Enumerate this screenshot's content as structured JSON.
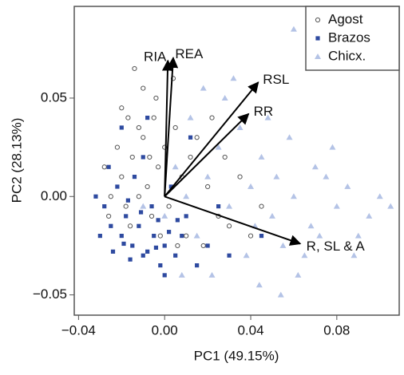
{
  "chart_data": {
    "type": "scatter",
    "x_label": "PC1 (49.15%)",
    "y_label": "PC2 (28.13%)",
    "xlim": [
      -0.042,
      0.109
    ],
    "ylim": [
      -0.0603,
      0.0966
    ],
    "xticks": [
      {
        "value": -0.04,
        "label": "−0.04"
      },
      {
        "value": 0,
        "label": "0.00"
      },
      0.04,
      0.08
    ],
    "yticks": [
      {
        "value": -0.05,
        "label": "−0.05"
      },
      {
        "value": 0,
        "label": "0.00"
      },
      0.05
    ],
    "legend": "top-right",
    "series": [
      {
        "name": "Agost",
        "color": "#555555",
        "marker": "open-circle",
        "x": [
          -0.02,
          -0.015,
          -0.01,
          -0.005,
          -0.018,
          -0.012,
          -0.008,
          -0.003,
          0,
          0.005,
          -0.022,
          -0.025,
          -0.016,
          -0.006,
          0.002,
          0.008,
          0.012,
          0.015,
          0.02,
          0.025,
          -0.028,
          -0.01,
          -0.014,
          -0.004,
          0.01,
          0.018,
          0.03,
          -0.002,
          -0.02,
          0.004,
          0.04,
          0.045,
          -0.012,
          -0.026,
          0.022,
          0.028,
          0.006,
          -0.007,
          -0.017,
          0.035
        ],
        "y": [
          0.01,
          0.02,
          0.03,
          0.04,
          -0.005,
          0,
          0.005,
          0.015,
          0.025,
          0.035,
          0.025,
          0,
          -0.015,
          -0.01,
          -0.005,
          0.01,
          0.02,
          0.03,
          0.005,
          -0.01,
          0.015,
          0.055,
          0.065,
          0.05,
          -0.02,
          -0.025,
          -0.015,
          -0.02,
          0.045,
          0.06,
          -0.02,
          -0.005,
          0.035,
          -0.01,
          0.04,
          0.02,
          -0.025,
          0.02,
          0.04,
          0.01
        ]
      },
      {
        "name": "Brazos",
        "color": "#2e4aa0",
        "marker": "square",
        "x": [
          -0.02,
          -0.015,
          -0.01,
          -0.005,
          0,
          -0.018,
          -0.012,
          -0.008,
          -0.003,
          0.002,
          -0.025,
          -0.028,
          -0.022,
          -0.014,
          -0.006,
          0.005,
          0.008,
          -0.03,
          -0.024,
          -0.016,
          -0.01,
          -0.02,
          0.01,
          0.015,
          -0.002,
          -0.026,
          0.02,
          0.03,
          -0.008,
          0.003,
          -0.017,
          0.012,
          0.025,
          -0.032,
          0,
          -0.011,
          0.045,
          0.006,
          -0.004,
          -0.019
        ],
        "y": [
          -0.02,
          -0.025,
          -0.03,
          -0.02,
          -0.025,
          -0.01,
          -0.015,
          -0.028,
          -0.012,
          -0.018,
          -0.015,
          -0.005,
          0.005,
          0.01,
          -0.005,
          -0.03,
          -0.02,
          -0.02,
          -0.028,
          -0.032,
          0.02,
          0.035,
          -0.01,
          -0.035,
          -0.035,
          0.015,
          -0.025,
          -0.03,
          0.04,
          0.005,
          -0.002,
          0.03,
          -0.005,
          0,
          -0.04,
          -0.008,
          -0.02,
          -0.012,
          -0.026,
          -0.024
        ]
      },
      {
        "name": "Chicx.",
        "color": "#b4c3e6",
        "marker": "triangle",
        "x": [
          0.01,
          0.02,
          0.03,
          0.04,
          0.05,
          0.06,
          0.07,
          0.08,
          0.09,
          0.1,
          0.015,
          0.025,
          0.035,
          0.045,
          0.055,
          0.065,
          0.075,
          0.085,
          0.095,
          0.105,
          0.005,
          0.012,
          0.028,
          0.038,
          0.048,
          0.058,
          0.068,
          0.078,
          0.088,
          0.044,
          0.022,
          0.032,
          -0.01,
          0,
          0.008,
          0.062,
          0.072,
          0.052,
          0.042,
          0.018,
          0.06,
          0.054
        ],
        "y": [
          0,
          0.01,
          -0.005,
          0.005,
          -0.01,
          0,
          0.015,
          -0.005,
          -0.02,
          0,
          -0.02,
          0.025,
          0.035,
          0.02,
          -0.025,
          -0.03,
          0.01,
          0.005,
          -0.01,
          -0.005,
          0.015,
          0.04,
          0.05,
          -0.03,
          0.04,
          0.03,
          -0.015,
          0.025,
          -0.03,
          -0.045,
          -0.04,
          0.06,
          -0.005,
          -0.01,
          -0.04,
          -0.04,
          -0.02,
          0.01,
          -0.015,
          0.055,
          0.085,
          -0.05
        ]
      }
    ],
    "loadings": [
      {
        "label": "RIA",
        "x": 0.0015,
        "y": 0.069
      },
      {
        "label": "REA",
        "x": 0.004,
        "y": 0.0705
      },
      {
        "label": "RSL",
        "x": 0.0435,
        "y": 0.058
      },
      {
        "label": "RR",
        "x": 0.039,
        "y": 0.042
      },
      {
        "label": "R, SL & A",
        "x": 0.063,
        "y": -0.024
      }
    ]
  }
}
